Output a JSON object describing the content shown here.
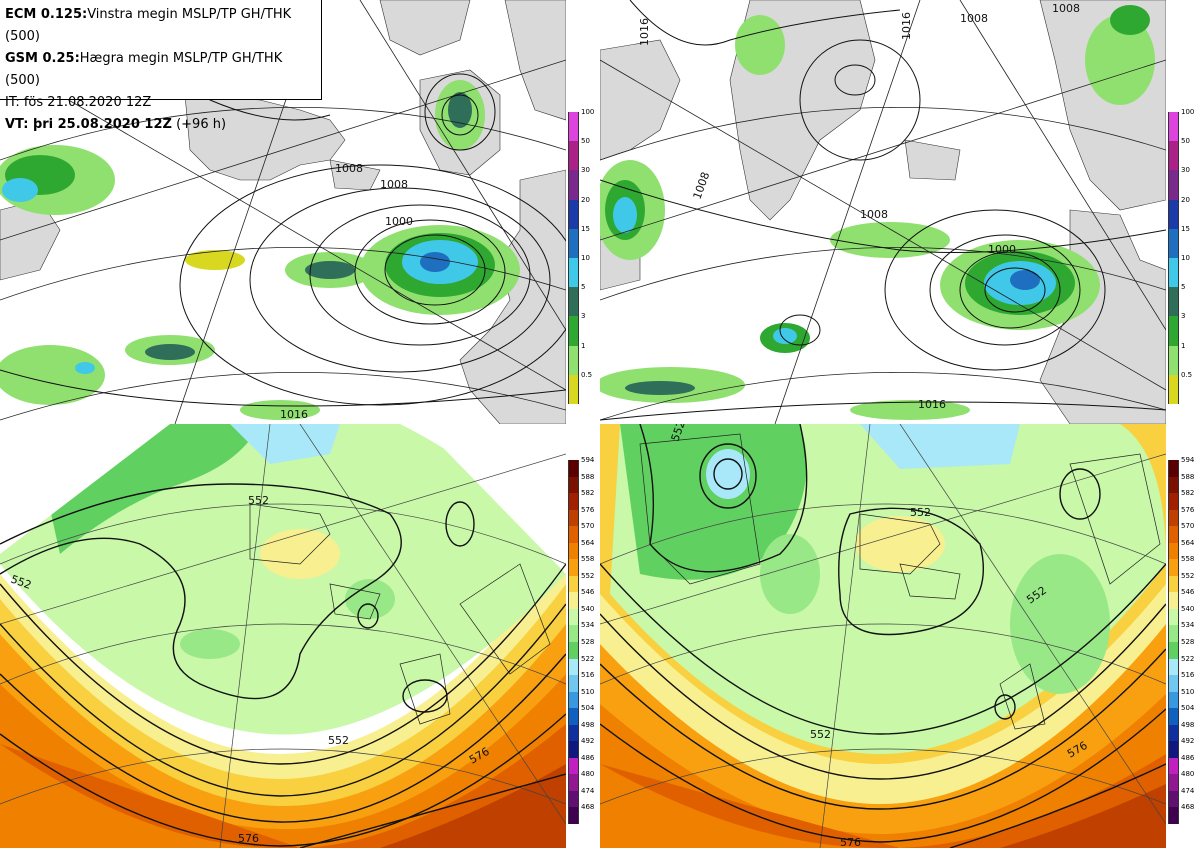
{
  "header": {
    "line1_bold": "ECM 0.125:",
    "line1_text": "Vinstra megin MSLP/TP GH/THK (500)",
    "line2_bold": "GSM 0.25:",
    "line2_text": "Hægra megin MSLP/TP GH/THK (500)",
    "line3": "IT: fös 21.08.2020 12Z",
    "line4_bold": "VT: þri 25.08.2020 12Z",
    "line4_text": "(+96 h)"
  },
  "precip_colorbar": {
    "ticks": [
      "100",
      "50",
      "30",
      "20",
      "15",
      "10",
      "5",
      "3",
      "1",
      "0.5"
    ],
    "colors": [
      "#dd44dd",
      "#aa2288",
      "#7a2a8c",
      "#1c3aa8",
      "#1e6fc0",
      "#40c8e8",
      "#2f6e58",
      "#2fa832",
      "#90e070",
      "#d8d820"
    ]
  },
  "thk_colorbar": {
    "ticks": [
      "594",
      "588",
      "582",
      "576",
      "570",
      "564",
      "558",
      "552",
      "546",
      "540",
      "534",
      "528",
      "522",
      "516",
      "510",
      "504",
      "498",
      "492",
      "486",
      "480",
      "474",
      "468"
    ],
    "colors": [
      "#5a0000",
      "#7a1000",
      "#a02000",
      "#c04000",
      "#e06000",
      "#f08000",
      "#f8a010",
      "#f8d040",
      "#f8f090",
      "#c8f8a8",
      "#98e888",
      "#60d060",
      "#a8e8f8",
      "#70c8f0",
      "#3898e0",
      "#1060c0",
      "#1030a0",
      "#101880",
      "#c020c0",
      "#901890",
      "#601070",
      "#400050"
    ]
  },
  "map_labels": {
    "ecm_mslp": {
      "l1008": "1008",
      "l1008b": "1008",
      "l1000": "1000",
      "l1016": "1016"
    },
    "gsm_mslp": {
      "l1008a": "1008",
      "l1008b": "1008",
      "l1016a": "1016",
      "l1016b": "1016",
      "l1000": "1000",
      "l1008c": "1008",
      "l1016c": "1016",
      "l1008d": "1008"
    },
    "ecm_gh": {
      "l552a": "552",
      "l552b": "552",
      "l552c": "552",
      "l576a": "576",
      "l576b": "576"
    },
    "gsm_gh": {
      "l552a": "552",
      "l552b": "552",
      "l552c": "552",
      "l552d": "552",
      "l576a": "576",
      "l576b": "576"
    }
  }
}
